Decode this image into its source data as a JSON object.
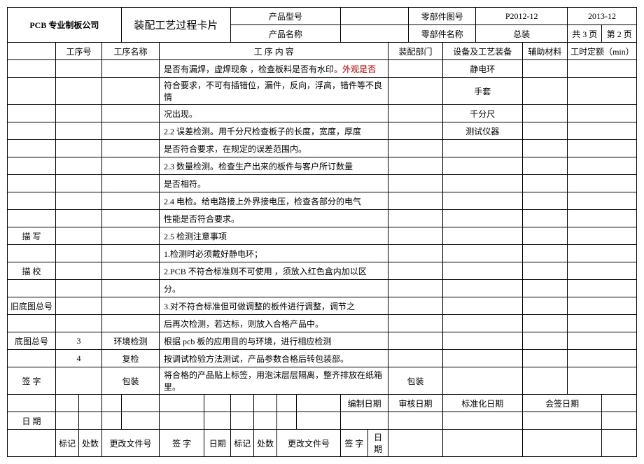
{
  "header": {
    "company": "PCB 专业制板公司",
    "title": "装配工艺过程卡片",
    "product_model_label": "产品型号",
    "product_model": "",
    "part_drawing_label": "零部件图号",
    "part_drawing": "P2012-12",
    "date": "2013-12",
    "product_name_label": "产品名称",
    "product_name": "",
    "part_name_label": "零部件名称",
    "part_name": "总装",
    "page_info_1": "共 3 页",
    "page_info_2": "第 2 页"
  },
  "columns": {
    "seq": "工序号",
    "name": "工序名称",
    "content": "工 序 内 容",
    "dept": "装配部门",
    "equip": "设备及工艺装备",
    "material": "辅助材料",
    "time": "工时定额（min）"
  },
  "rows": [
    {
      "content_parts": [
        {
          "text": "是否有漏焊，虚焊现象 ，检查板料是否有水印"
        },
        {
          "text": "。外观是否",
          "red": true
        }
      ],
      "equip": "静电环"
    },
    {
      "content": "符合要求，不可有插错位，漏件，反向，浮高，错件等不良情",
      "equip": "手套"
    },
    {
      "content": "况出现。",
      "equip": "千分尺"
    },
    {
      "content": "2.2 误差检测。用千分尺检查板子的长度，宽度，厚度",
      "equip": "测试仪器"
    },
    {
      "content": "是否符合要求，在规定的误差范围内。"
    },
    {
      "content": "2.3 数量检测。检查生产出来的板件与客户所订数量"
    },
    {
      "content": "是否相符。"
    },
    {
      "content": "2.4 电检。给电路接上外界接电压，检查各部分的电气"
    },
    {
      "content": "性能是否符合要求。"
    },
    {
      "label": "描 写",
      "content": "2.5 检测注意事项"
    },
    {
      "content": "1.检测时必须戴好静电环；"
    },
    {
      "label": "描 校",
      "content": "2.PCB 不符合标准则不可使用 ，须放入红色盒内加以区"
    },
    {
      "content": "分。"
    },
    {
      "label": "旧底图总号",
      "content": "3.对不符合标准但可做调整的板件进行调整，调节之"
    },
    {
      "content": "后再次检测，若达标，则放入合格产品中。"
    },
    {
      "label": "底图总号",
      "seq": "3",
      "name": "环境检测",
      "content": "根据 pcb 板的应用目的与环境，进行相应检测"
    },
    {
      "seq": "4",
      "name": "复检",
      "content": "按调试检验方法测试，产品参数合格后转包装部。"
    },
    {
      "label": "签 字",
      "name": "包装",
      "content": "将合格的产品贴上标签，用泡沫层层隔离，整齐排放在纸箱里。",
      "dept": "包装"
    }
  ],
  "footer": {
    "date_label": "日 期",
    "compile_date": "编制日期",
    "review_date": "审核日期",
    "standard_date": "标准化日期",
    "cosign_date": "会签日期",
    "mark": "标记",
    "count": "处数",
    "change_file": "更改文件号",
    "sign": "签 字",
    "date": "日期"
  }
}
